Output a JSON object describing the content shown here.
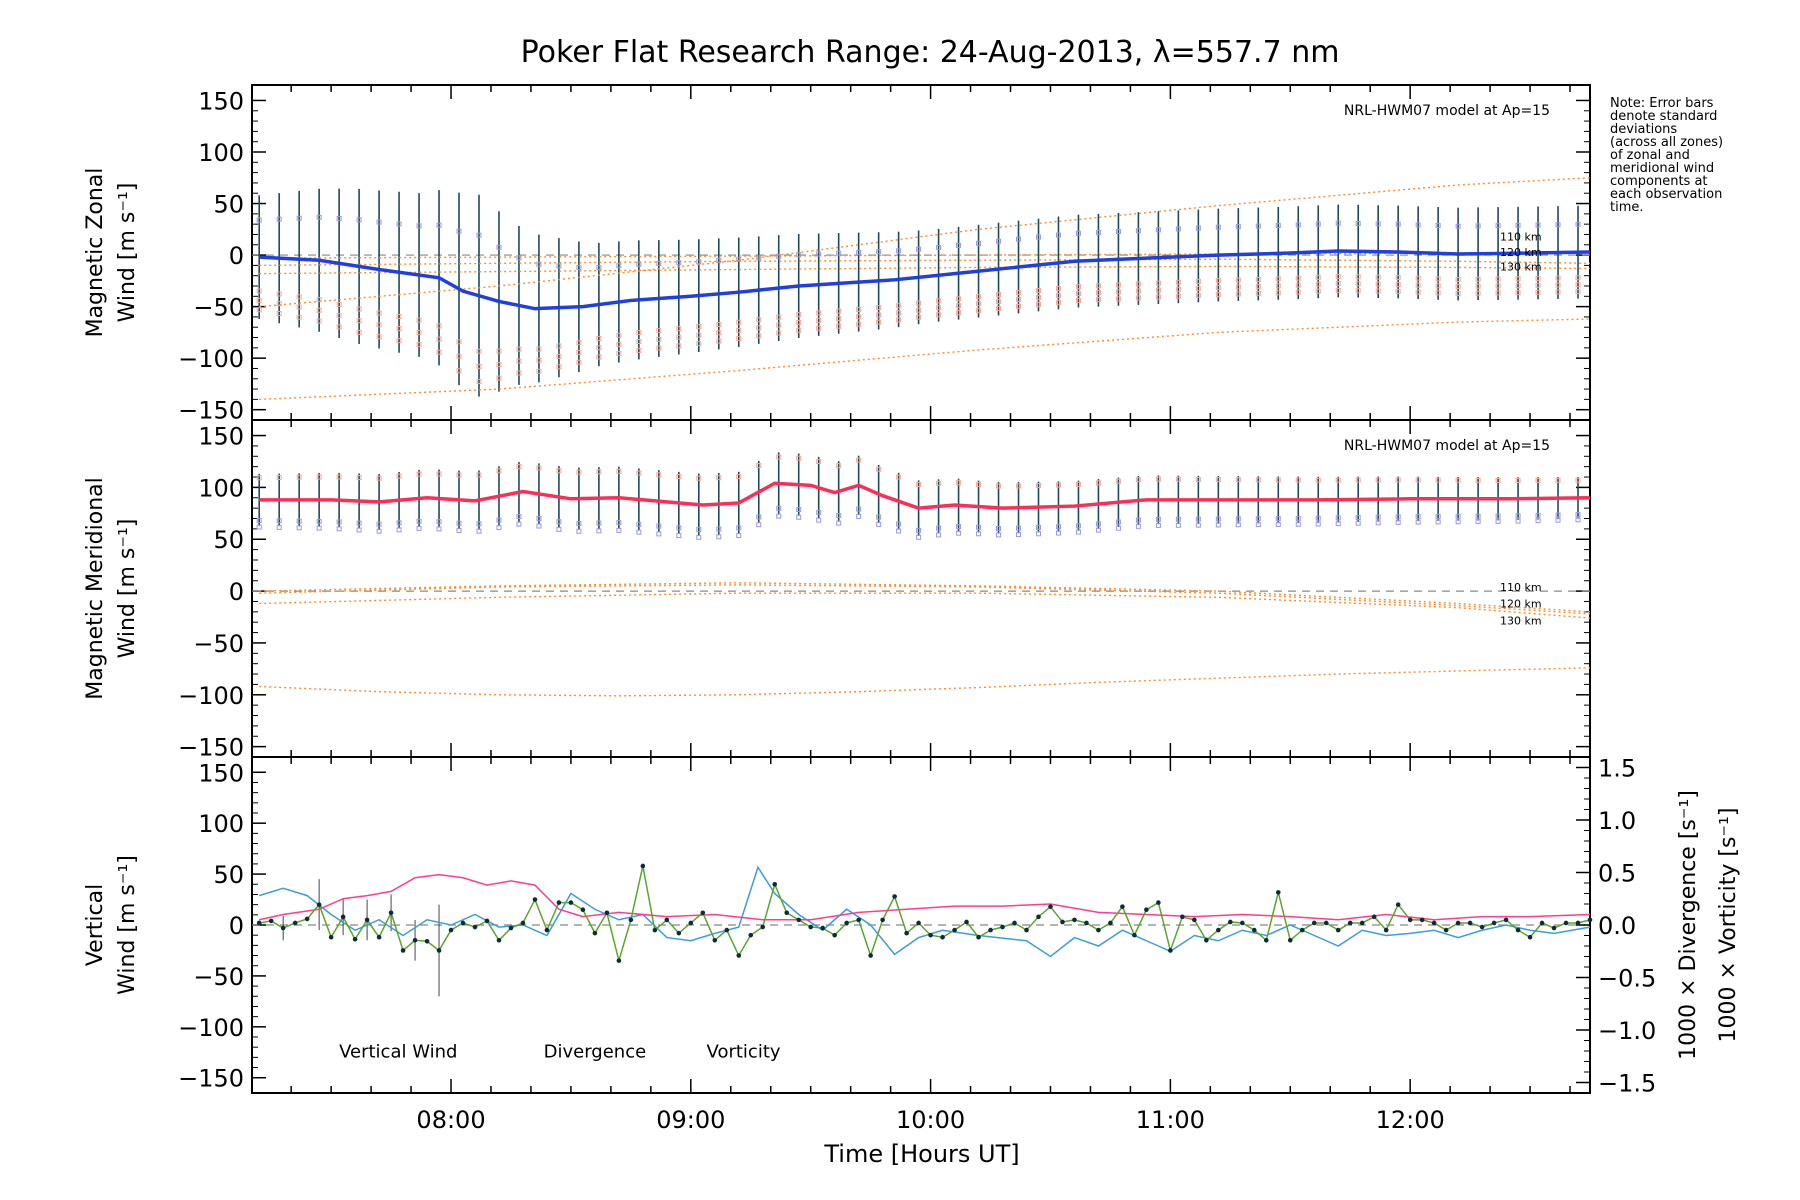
{
  "title": "Poker Flat Research Range: 24-Aug-2013, λ=557.7 nm",
  "note": [
    "Note: Error bars",
    "denote standard",
    "deviations",
    "(across all zones)",
    "of zonal and",
    "meridional wind",
    "components at",
    "each observation",
    "time."
  ],
  "xlabel": "Time [Hours UT]",
  "colors": {
    "zonal": "#1f3fe0",
    "meridional": "#ff2d55",
    "model": "#ff8c2a",
    "vertical": "#5aa62b",
    "divergence": "#3a9fd8",
    "vorticity": "#ff3d8a",
    "errorbar": "#1d4a5a",
    "zoneSquaresPink": "#f7a99a",
    "zoneSquaresBlue": "#9a9ae0"
  },
  "chart_data": [
    {
      "id": "zonal",
      "type": "line",
      "title": "",
      "ylabel_line1": "Magnetic Zonal",
      "ylabel_line2": "Wind [m s⁻¹]",
      "model_label": "NRL-HWM07 model at Ap=15",
      "km_labels": [
        "110 km",
        "120 km",
        "130 km"
      ],
      "ylim": [
        -160,
        165
      ],
      "yticks": [
        "150",
        "100",
        "50",
        "0",
        "−50",
        "−100",
        "−150"
      ],
      "ytick_values": [
        150,
        100,
        50,
        0,
        -50,
        -100,
        -150
      ],
      "xlim": [
        7.17,
        12.75
      ],
      "series": [
        {
          "name": "Zonal wind",
          "x": [
            7.2,
            7.45,
            7.7,
            7.95,
            8.05,
            8.2,
            8.35,
            8.55,
            8.75,
            9.0,
            9.2,
            9.45,
            9.65,
            9.85,
            10.1,
            10.35,
            10.6,
            10.9,
            11.2,
            11.5,
            11.7,
            11.95,
            12.2,
            12.5,
            12.75
          ],
          "y": [
            -2,
            -5,
            -14,
            -22,
            -35,
            -45,
            -52,
            -50,
            -44,
            -40,
            -36,
            -30,
            -27,
            -24,
            -18,
            -12,
            -6,
            -3,
            0,
            2,
            4,
            3,
            1,
            2,
            3
          ]
        },
        {
          "name": "Model 110 km",
          "x": [
            7.2,
            8.2,
            9.2,
            10.2,
            11.2,
            12.2,
            12.75
          ],
          "y": [
            -3,
            -2,
            -1,
            0,
            1,
            2,
            3
          ]
        },
        {
          "name": "Model 120 km",
          "x": [
            7.2,
            8.2,
            9.2,
            10.2,
            11.2,
            12.2,
            12.75
          ],
          "y": [
            -10,
            -8,
            -6,
            -5,
            -4,
            -6,
            -8
          ]
        },
        {
          "name": "Model 130 km",
          "x": [
            7.2,
            8.2,
            9.2,
            10.2,
            11.2,
            12.2,
            12.75
          ],
          "y": [
            -18,
            -16,
            -14,
            -12,
            -11,
            -12,
            -13
          ]
        },
        {
          "name": "Model upper envelope",
          "x": [
            7.2,
            8.2,
            9.2,
            10.2,
            11.2,
            12.2,
            12.75
          ],
          "y": [
            -50,
            -30,
            -5,
            25,
            48,
            68,
            75
          ]
        },
        {
          "name": "Model lower envelope",
          "x": [
            7.2,
            8.2,
            9.2,
            10.2,
            11.2,
            12.2,
            12.75
          ],
          "y": [
            -140,
            -130,
            -112,
            -92,
            -75,
            -65,
            -62
          ]
        }
      ],
      "errorbar_halfwidth": [
        {
          "x": [
            7.2,
            7.6,
            7.9,
            8.1,
            8.3,
            8.6,
            9.0,
            9.5,
            10.0,
            10.5,
            11.0,
            11.5,
            12.0,
            12.75
          ],
          "y": [
            60,
            75,
            80,
            100,
            75,
            60,
            55,
            50,
            45,
            45,
            45,
            45,
            45,
            45
          ]
        }
      ]
    },
    {
      "id": "meridional",
      "type": "line",
      "ylabel_line1": "Magnetic Meridional",
      "ylabel_line2": "Wind [m s⁻¹]",
      "model_label": "NRL-HWM07 model at Ap=15",
      "km_labels": [
        "110 km",
        "120 km",
        "130 km"
      ],
      "ylim": [
        -160,
        165
      ],
      "yticks": [
        "150",
        "100",
        "50",
        "0",
        "−50",
        "−100",
        "−150"
      ],
      "ytick_values": [
        150,
        100,
        50,
        0,
        -50,
        -100,
        -150
      ],
      "xlim": [
        7.17,
        12.75
      ],
      "series": [
        {
          "name": "Meridional wind",
          "x": [
            7.2,
            7.5,
            7.7,
            7.9,
            8.1,
            8.3,
            8.5,
            8.7,
            8.9,
            9.05,
            9.2,
            9.35,
            9.5,
            9.6,
            9.7,
            9.8,
            9.95,
            10.1,
            10.3,
            10.6,
            10.9,
            11.2,
            11.6,
            12.0,
            12.4,
            12.75
          ],
          "y": [
            88,
            88,
            86,
            90,
            87,
            96,
            89,
            90,
            86,
            83,
            85,
            104,
            102,
            95,
            102,
            92,
            80,
            83,
            80,
            82,
            88,
            88,
            88,
            89,
            89,
            90
          ]
        },
        {
          "name": "Model 110 km",
          "x": [
            7.2,
            8.2,
            9.2,
            10.2,
            11.2,
            12.2,
            12.75
          ],
          "y": [
            0,
            5,
            8,
            5,
            0,
            -12,
            -20
          ]
        },
        {
          "name": "Model 120 km",
          "x": [
            7.2,
            8.2,
            9.2,
            10.2,
            11.2,
            12.2,
            12.75
          ],
          "y": [
            -2,
            4,
            6,
            4,
            -2,
            -14,
            -22
          ]
        },
        {
          "name": "Model 130 km",
          "x": [
            7.2,
            8.2,
            9.2,
            10.2,
            11.2,
            12.2,
            12.75
          ],
          "y": [
            -12,
            -6,
            -2,
            -2,
            -6,
            -16,
            -26
          ]
        },
        {
          "name": "Model lower envelope",
          "x": [
            7.2,
            7.7,
            8.2,
            8.7,
            9.2,
            9.7,
            10.2,
            10.7,
            11.2,
            11.7,
            12.2,
            12.75
          ],
          "y": [
            -92,
            -97,
            -100,
            -101,
            -100,
            -97,
            -93,
            -88,
            -84,
            -80,
            -77,
            -74
          ]
        }
      ],
      "errorbar_halfwidth": [
        {
          "x": [
            7.2,
            8.5,
            9.5,
            10.2,
            12.75
          ],
          "y": [
            25,
            30,
            30,
            25,
            20
          ]
        }
      ]
    },
    {
      "id": "vertical",
      "type": "line",
      "ylabel_line1": "Vertical",
      "ylabel_line2": "Wind [m s⁻¹]",
      "right_label_div": "1000 × Divergence [s⁻¹]",
      "right_label_vort": "1000 × Vorticity [s⁻¹]",
      "ylim": [
        -165,
        165
      ],
      "yticks": [
        "150",
        "100",
        "50",
        "0",
        "−50",
        "−100",
        "−150"
      ],
      "ytick_values": [
        150,
        100,
        50,
        0,
        -50,
        -100,
        -150
      ],
      "y2lim": [
        -1.6,
        1.6
      ],
      "y2ticks": [
        "1.5",
        "1.0",
        "0.5",
        "0.0",
        "−0.5",
        "−1.0",
        "−1.5"
      ],
      "y2tick_values": [
        1.5,
        1.0,
        0.5,
        0.0,
        -0.5,
        -1.0,
        -1.5
      ],
      "xlim": [
        7.17,
        12.75
      ],
      "xticks": [
        "08:00",
        "09:00",
        "10:00",
        "11:00",
        "12:00"
      ],
      "xtick_values": [
        8,
        9,
        10,
        11,
        12
      ],
      "legend": [
        "Vertical Wind",
        "Divergence",
        "Vorticity"
      ],
      "series": [
        {
          "name": "Vertical Wind",
          "x": [
            7.2,
            7.25,
            7.3,
            7.35,
            7.4,
            7.45,
            7.5,
            7.55,
            7.6,
            7.65,
            7.7,
            7.75,
            7.8,
            7.85,
            7.9,
            7.95,
            8.0,
            8.05,
            8.1,
            8.15,
            8.2,
            8.25,
            8.3,
            8.35,
            8.4,
            8.45,
            8.5,
            8.55,
            8.6,
            8.65,
            8.7,
            8.75,
            8.8,
            8.85,
            8.9,
            8.95,
            9.0,
            9.05,
            9.1,
            9.15,
            9.2,
            9.25,
            9.3,
            9.35,
            9.4,
            9.45,
            9.5,
            9.55,
            9.6,
            9.65,
            9.7,
            9.75,
            9.8,
            9.85,
            9.9,
            9.95,
            10.0,
            10.05,
            10.1,
            10.15,
            10.2,
            10.25,
            10.3,
            10.35,
            10.4,
            10.45,
            10.5,
            10.55,
            10.6,
            10.65,
            10.7,
            10.75,
            10.8,
            10.85,
            10.9,
            10.95,
            11.0,
            11.05,
            11.1,
            11.15,
            11.2,
            11.25,
            11.3,
            11.35,
            11.4,
            11.45,
            11.5,
            11.55,
            11.6,
            11.65,
            11.7,
            11.75,
            11.8,
            11.85,
            11.9,
            11.95,
            12.0,
            12.05,
            12.1,
            12.15,
            12.2,
            12.25,
            12.3,
            12.35,
            12.4,
            12.45,
            12.5,
            12.55,
            12.6,
            12.65,
            12.7,
            12.75
          ],
          "y": [
            2,
            4,
            -3,
            2,
            6,
            20,
            -12,
            8,
            -14,
            5,
            -12,
            12,
            -25,
            -15,
            -16,
            -25,
            -5,
            2,
            -2,
            4,
            -15,
            -3,
            2,
            25,
            -5,
            22,
            22,
            15,
            -8,
            12,
            -35,
            5,
            58,
            -5,
            5,
            -8,
            2,
            12,
            -15,
            -5,
            -30,
            -10,
            -2,
            40,
            12,
            5,
            -2,
            -3,
            -10,
            2,
            5,
            -30,
            5,
            28,
            -8,
            2,
            -10,
            -12,
            -5,
            3,
            -12,
            -5,
            -2,
            2,
            -5,
            8,
            18,
            3,
            5,
            2,
            -5,
            2,
            18,
            -10,
            15,
            22,
            -25,
            8,
            5,
            -15,
            -5,
            3,
            2,
            -5,
            -15,
            32,
            -15,
            -5,
            2,
            2,
            -5,
            2,
            2,
            8,
            -5,
            20,
            5,
            5,
            2,
            -5,
            2,
            2,
            -2,
            2,
            5,
            -5,
            -12,
            2,
            -3,
            2,
            2,
            5
          ]
        },
        {
          "name": "Divergence",
          "axis": "y2",
          "x": [
            7.2,
            7.3,
            7.4,
            7.5,
            7.6,
            7.7,
            7.8,
            7.9,
            8.0,
            8.1,
            8.2,
            8.3,
            8.4,
            8.5,
            8.6,
            8.7,
            8.8,
            8.9,
            9.0,
            9.1,
            9.2,
            9.28,
            9.35,
            9.45,
            9.55,
            9.65,
            9.75,
            9.85,
            9.95,
            10.05,
            10.2,
            10.4,
            10.5,
            10.6,
            10.7,
            10.8,
            10.9,
            11.0,
            11.1,
            11.2,
            11.3,
            11.4,
            11.5,
            11.6,
            11.7,
            11.8,
            11.9,
            12.0,
            12.1,
            12.2,
            12.3,
            12.4,
            12.5,
            12.6,
            12.75
          ],
          "y": [
            0.28,
            0.35,
            0.28,
            0.1,
            -0.05,
            0.05,
            -0.1,
            0.05,
            0.0,
            0.1,
            -0.02,
            0.0,
            -0.1,
            0.3,
            0.15,
            0.05,
            0.1,
            -0.12,
            -0.15,
            -0.08,
            -0.02,
            0.55,
            0.3,
            0.1,
            -0.05,
            0.15,
            0.0,
            -0.28,
            -0.12,
            -0.05,
            -0.1,
            -0.15,
            -0.3,
            -0.12,
            -0.2,
            -0.05,
            -0.15,
            -0.25,
            -0.1,
            -0.15,
            -0.05,
            -0.1,
            0.0,
            -0.1,
            -0.2,
            -0.05,
            -0.1,
            -0.08,
            -0.05,
            -0.12,
            -0.05,
            0.0,
            -0.05,
            -0.08,
            -0.02
          ]
        },
        {
          "name": "Vorticity",
          "axis": "y2",
          "x": [
            7.2,
            7.3,
            7.45,
            7.55,
            7.65,
            7.75,
            7.85,
            7.95,
            8.05,
            8.15,
            8.25,
            8.35,
            8.45,
            8.55,
            8.7,
            8.9,
            9.1,
            9.3,
            9.5,
            9.7,
            9.9,
            10.1,
            10.3,
            10.5,
            10.7,
            10.9,
            11.1,
            11.3,
            11.5,
            11.7,
            11.9,
            12.1,
            12.3,
            12.5,
            12.75
          ],
          "y": [
            0.05,
            0.1,
            0.15,
            0.25,
            0.28,
            0.32,
            0.45,
            0.48,
            0.45,
            0.38,
            0.42,
            0.38,
            0.15,
            0.08,
            0.12,
            0.08,
            0.1,
            0.05,
            0.05,
            0.12,
            0.15,
            0.18,
            0.18,
            0.2,
            0.12,
            0.1,
            0.08,
            0.1,
            0.08,
            0.05,
            0.1,
            0.05,
            0.08,
            0.08,
            0.1
          ]
        }
      ]
    }
  ]
}
